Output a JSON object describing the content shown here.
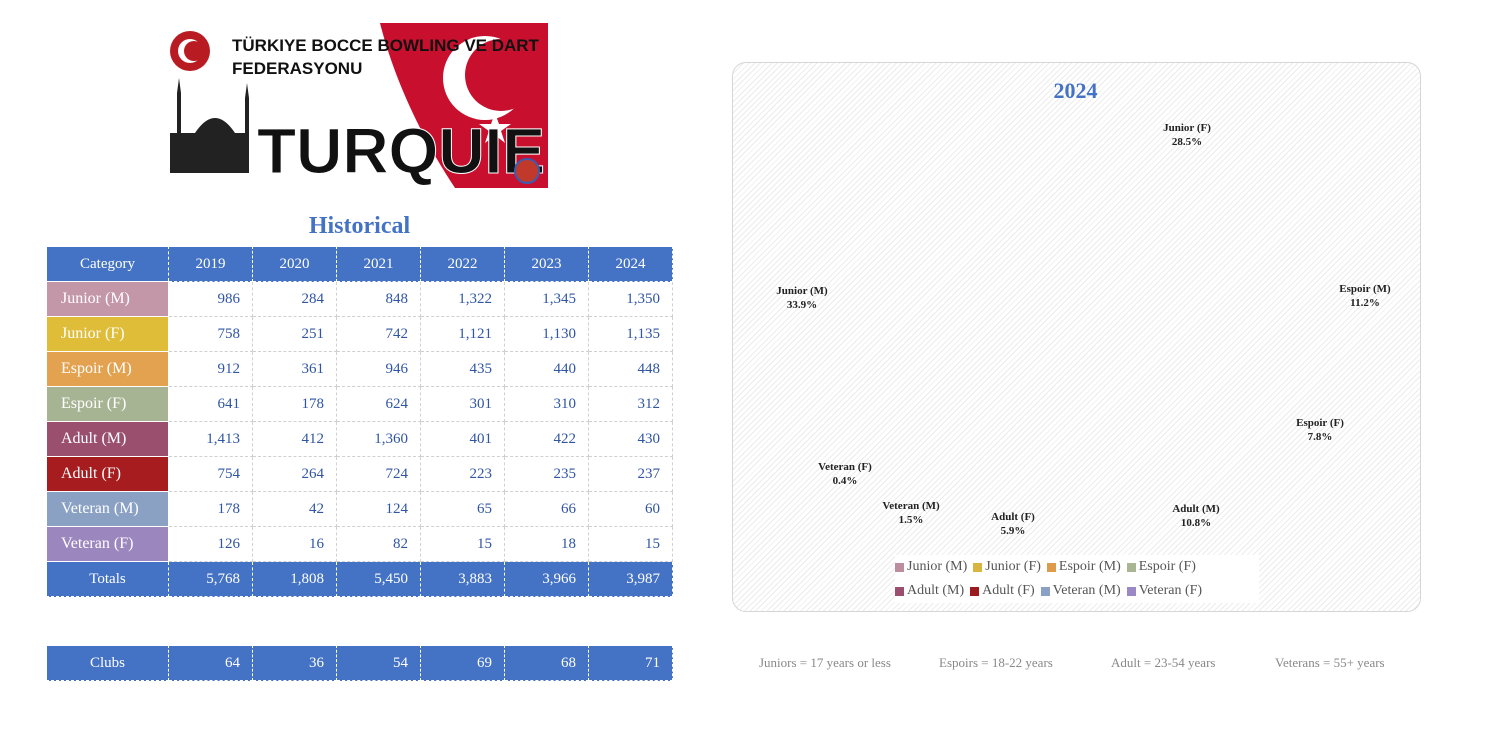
{
  "logo": {
    "title_line1": "TÜRKIYE BOCCE BOWLING VE DART",
    "title_line2": "FEDERASYONU",
    "country": "TURQUIE"
  },
  "table": {
    "title": "Historical",
    "header": [
      "Category",
      "2019",
      "2020",
      "2021",
      "2022",
      "2023",
      "2024"
    ],
    "rows": [
      {
        "label": "Junior (M)",
        "color": "#c497a8",
        "values": [
          "986",
          "284",
          "848",
          "1,322",
          "1,345",
          "1,350"
        ]
      },
      {
        "label": "Junior (F)",
        "color": "#dfbd39",
        "values": [
          "758",
          "251",
          "742",
          "1,121",
          "1,130",
          "1,135"
        ]
      },
      {
        "label": "Espoir (M)",
        "color": "#e3a250",
        "values": [
          "912",
          "361",
          "946",
          "435",
          "440",
          "448"
        ]
      },
      {
        "label": "Espoir (F)",
        "color": "#a7b493",
        "values": [
          "641",
          "178",
          "624",
          "301",
          "310",
          "312"
        ]
      },
      {
        "label": "Adult (M)",
        "color": "#9b4f6e",
        "values": [
          "1,413",
          "412",
          "1,360",
          "401",
          "422",
          "430"
        ]
      },
      {
        "label": "Adult (F)",
        "color": "#a61c1f",
        "values": [
          "754",
          "264",
          "724",
          "223",
          "235",
          "237"
        ]
      },
      {
        "label": "Veteran (M)",
        "color": "#8aa1c4",
        "values": [
          "178",
          "42",
          "124",
          "65",
          "66",
          "60"
        ]
      },
      {
        "label": "Veteran (F)",
        "color": "#9c86be",
        "values": [
          "126",
          "16",
          "82",
          "15",
          "18",
          "15"
        ]
      }
    ],
    "totals": {
      "label": "Totals",
      "values": [
        "5,768",
        "1,808",
        "5,450",
        "3,883",
        "3,966",
        "3,987"
      ]
    },
    "clubs": {
      "label": "Clubs",
      "values": [
        "64",
        "36",
        "54",
        "69",
        "68",
        "71"
      ]
    }
  },
  "chart_data": {
    "type": "pie",
    "style": "3d-exploded",
    "title": "2024",
    "legend_position": "bottom",
    "categories": [
      "Junior (M)",
      "Junior (F)",
      "Espoir (M)",
      "Espoir (F)",
      "Adult (M)",
      "Adult (F)",
      "Veteran (M)",
      "Veteran (F)"
    ],
    "values": [
      1350,
      1135,
      448,
      312,
      430,
      237,
      60,
      15
    ],
    "percent_labels": [
      "33.9%",
      "28.5%",
      "11.2%",
      "7.8%",
      "10.8%",
      "5.9%",
      "1.5%",
      "0.4%"
    ],
    "colors": [
      "#bc8d9f",
      "#d7b53e",
      "#dc9c4c",
      "#a9b593",
      "#9b4f70",
      "#9c1b1e",
      "#8aa0c4",
      "#9a89c4"
    ]
  },
  "notes": [
    "Juniors = 17 years or less",
    "Espoirs = 18-22 years",
    "Adult = 23-54 years",
    "Veterans = 55+ years"
  ]
}
